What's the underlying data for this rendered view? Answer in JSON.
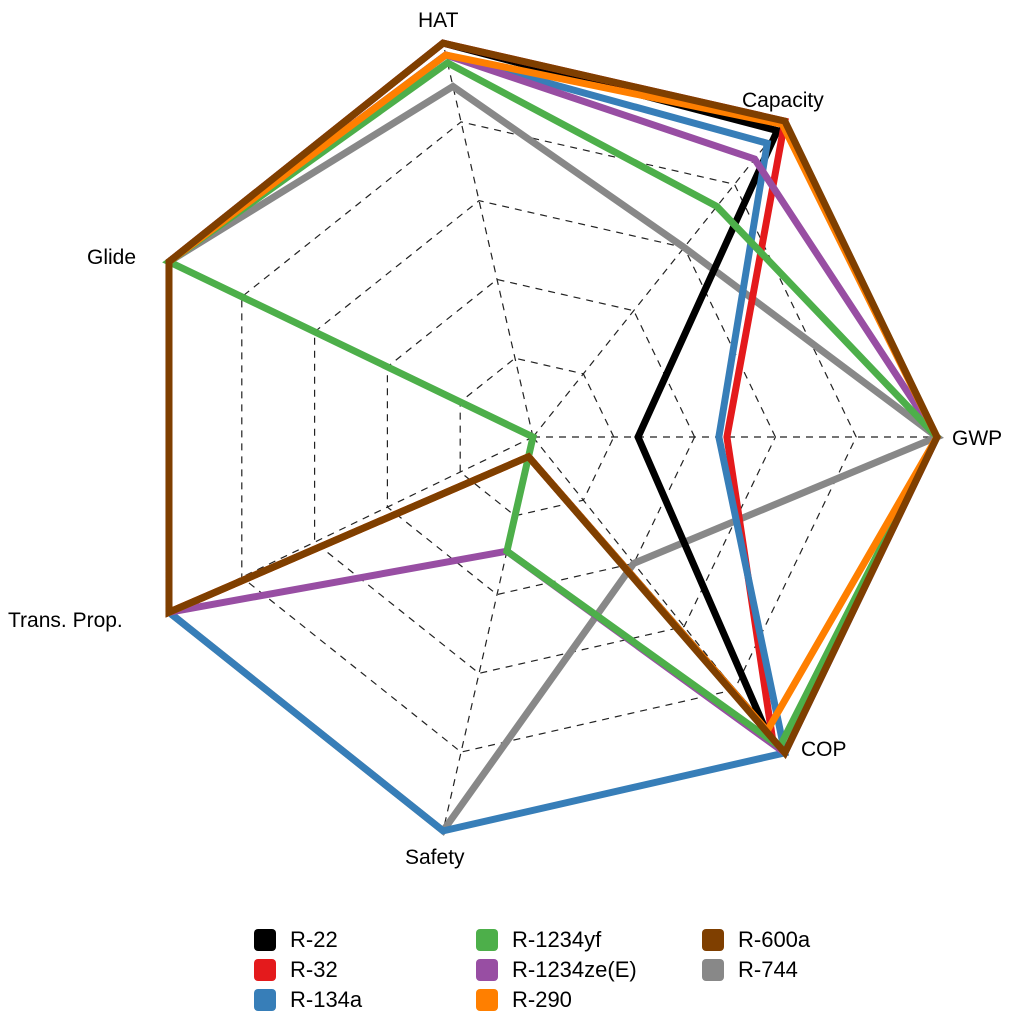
{
  "chart_data": {
    "type": "radar",
    "title": "",
    "axes": [
      "GWP",
      "Capacity",
      "HAT",
      "Glide",
      "Trans. Prop.",
      "Safety",
      "COP"
    ],
    "axis_angles_deg": [
      0,
      51.43,
      102.86,
      154.29,
      205.71,
      257.14,
      308.57
    ],
    "range": [
      0,
      1
    ],
    "grid_levels": [
      0.2,
      0.4,
      0.6,
      0.8,
      1.0
    ],
    "grid": "dashed",
    "legend_position": "bottom",
    "series": [
      {
        "name": "R-744",
        "color": "#888888",
        "values": [
          1.0,
          0.6,
          0.89,
          1.0,
          1.0,
          1.0,
          0.4
        ]
      },
      {
        "name": "R-22",
        "color": "#000000",
        "values": [
          0.26,
          0.97,
          1.0,
          1.0,
          1.0,
          0.05,
          0.92
        ]
      },
      {
        "name": "R-32",
        "color": "#E41A1C",
        "values": [
          0.48,
          1.0,
          1.0,
          1.0,
          1.0,
          0.05,
          0.95
        ]
      },
      {
        "name": "R-134a",
        "color": "#377EB8",
        "values": [
          0.46,
          0.93,
          0.97,
          1.0,
          1.0,
          1.0,
          1.0
        ]
      },
      {
        "name": "R-1234ze(E)",
        "color": "#984EA3",
        "values": [
          1.0,
          0.88,
          0.97,
          1.0,
          1.0,
          0.29,
          1.0
        ]
      },
      {
        "name": "R-1234yf",
        "color": "#4DAF4A",
        "values": [
          1.0,
          0.73,
          0.95,
          1.0,
          0.0,
          0.29,
          0.98
        ]
      },
      {
        "name": "R-290",
        "color": "#FF7F00",
        "values": [
          1.0,
          0.99,
          0.97,
          1.0,
          1.0,
          0.05,
          0.93
        ]
      },
      {
        "name": "R-600a",
        "color": "#7F3F00",
        "values": [
          1.0,
          1.0,
          1.0,
          1.0,
          1.0,
          0.05,
          1.0
        ]
      }
    ],
    "legend": [
      [
        "R-22",
        "R-32",
        "R-134a"
      ],
      [
        "R-1234yf",
        "R-1234ze(E)",
        "R-290"
      ],
      [
        "R-600a",
        "R-744"
      ]
    ]
  },
  "legend_colors": {
    "R-22": "#000000",
    "R-32": "#E41A1C",
    "R-134a": "#377EB8",
    "R-1234yf": "#4DAF4A",
    "R-1234ze(E)": "#984EA3",
    "R-290": "#FF7F00",
    "R-600a": "#7F3F00",
    "R-744": "#888888"
  },
  "labels": {
    "gwp": "GWP",
    "capacity": "Capacity",
    "hat": "HAT",
    "glide": "Glide",
    "trans_prop": "Trans. Prop.",
    "safety": "Safety",
    "cop": "COP"
  }
}
